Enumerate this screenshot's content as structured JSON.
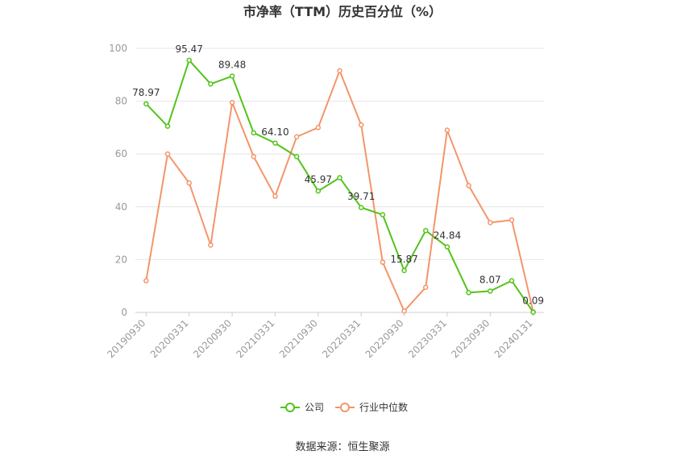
{
  "chart_data": {
    "type": "line",
    "title": "市净率（TTM）历史百分位（%）",
    "ylim": [
      0,
      100
    ],
    "yticks": [
      0,
      20,
      40,
      60,
      80,
      100
    ],
    "xticklabels": [
      "20190930",
      "20200331",
      "20200930",
      "20210331",
      "20210930",
      "20220331",
      "20220930",
      "20230331",
      "20230930",
      "20240131"
    ],
    "x": [
      "20190930",
      "",
      "20200331",
      "",
      "20200930",
      "",
      "20210331",
      "",
      "20210930",
      "",
      "20220331",
      "",
      "20220930",
      "",
      "20230331",
      "",
      "20230930",
      "",
      "20240131"
    ],
    "series": [
      {
        "name": "公司",
        "color": "#52c41a",
        "values": [
          78.97,
          70.5,
          95.47,
          86.5,
          89.48,
          68.0,
          64.1,
          59.0,
          45.97,
          51.0,
          39.71,
          37.0,
          15.87,
          31.0,
          24.84,
          7.5,
          8.07,
          12.0,
          0.09
        ],
        "labels": [
          "78.97",
          "",
          "95.47",
          "",
          "89.48",
          "",
          "64.10",
          "",
          "45.97",
          "",
          "39.71",
          "",
          "15.87",
          "",
          "24.84",
          "",
          "8.07",
          "",
          "0.09"
        ]
      },
      {
        "name": "行业中位数",
        "color": "#f4956b",
        "values": [
          12.0,
          60.0,
          49.0,
          25.5,
          79.5,
          59.0,
          44.0,
          66.5,
          70.0,
          91.5,
          71.0,
          19.0,
          0.5,
          9.5,
          69.0,
          48.0,
          34.0,
          35.0,
          0.2
        ]
      }
    ]
  },
  "legend": {
    "placement": "bottom"
  },
  "source": "数据来源：恒生聚源"
}
